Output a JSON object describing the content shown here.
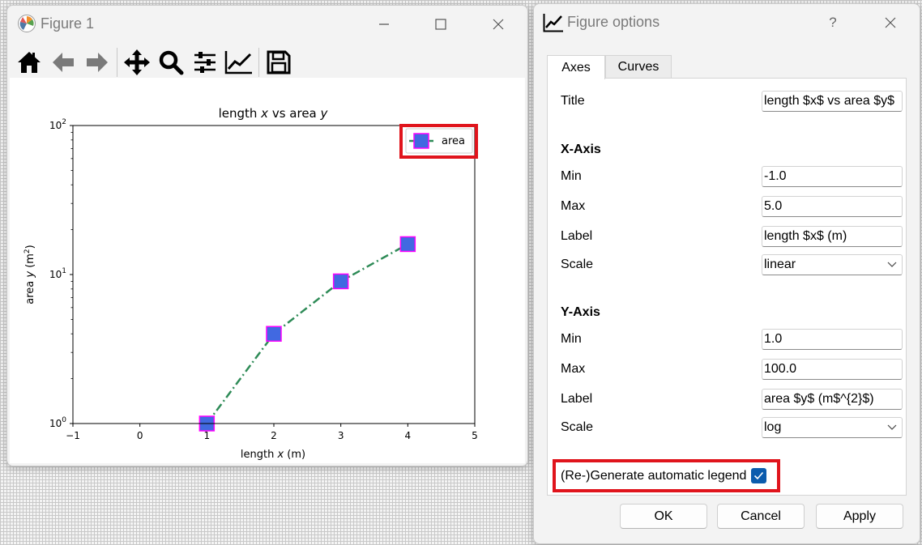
{
  "figure_window": {
    "title": "Figure 1",
    "toolbar": [
      "home-icon",
      "back-icon",
      "forward-icon",
      "pan-icon",
      "zoom-icon",
      "subplots-icon",
      "customize-icon",
      "save-icon"
    ]
  },
  "chart_data": {
    "type": "line",
    "title_prefix": "length ",
    "title_var_x": "x",
    "title_mid": " vs area ",
    "title_var_y": "y",
    "xlabel_prefix": "length ",
    "xlabel_var": "x",
    "xlabel_suffix": " (m)",
    "ylabel_prefix": "area ",
    "ylabel_var": "y",
    "ylabel_suffix": " (m",
    "ylabel_sup": "2",
    "ylabel_close": ")",
    "xlim": [
      -1,
      5
    ],
    "ylim": [
      1,
      100
    ],
    "yscale": "log",
    "xticks": [
      -1,
      0,
      1,
      2,
      3,
      4,
      5
    ],
    "xtick_labels": [
      "−1",
      "0",
      "1",
      "2",
      "3",
      "4",
      "5"
    ],
    "yticks": [
      1,
      10,
      100
    ],
    "ytick_base": "10",
    "ytick_exps": [
      "0",
      "1",
      "2"
    ],
    "legend_placement": "top-right",
    "series": [
      {
        "name": "area",
        "x": [
          1,
          2,
          3,
          4
        ],
        "y": [
          1,
          4,
          9,
          16
        ],
        "line_color": "#2e8b57",
        "line_style": "dash-dot",
        "marker": "square",
        "marker_face": "#4169e1",
        "marker_edge": "#ff00ff"
      }
    ]
  },
  "options_dialog": {
    "title": "Figure options",
    "help_label": "?",
    "tabs": [
      "Axes",
      "Curves"
    ],
    "active_tab": "Axes",
    "title_label": "Title",
    "title_value": "length $x$ vs area $y$",
    "x_axis": {
      "header": "X-Axis",
      "min_label": "Min",
      "min_value": "-1.0",
      "max_label": "Max",
      "max_value": "5.0",
      "label_label": "Label",
      "label_value": "length $x$ (m)",
      "scale_label": "Scale",
      "scale_value": "linear"
    },
    "y_axis": {
      "header": "Y-Axis",
      "min_label": "Min",
      "min_value": "1.0",
      "max_label": "Max",
      "max_value": "100.0",
      "label_label": "Label",
      "label_value": "area $y$ (m$^{2}$)",
      "scale_label": "Scale",
      "scale_value": "log"
    },
    "legend_checkbox_label": "(Re-)Generate automatic legend",
    "legend_checkbox_checked": true,
    "buttons": {
      "ok": "OK",
      "cancel": "Cancel",
      "apply": "Apply"
    }
  },
  "colors": {
    "highlight": "#e0141c",
    "checkbox": "#0b5cad"
  }
}
